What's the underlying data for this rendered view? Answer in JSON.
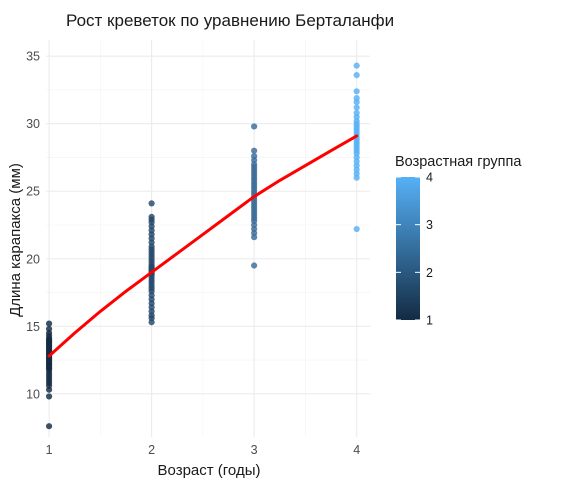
{
  "chart_data": {
    "type": "scatter",
    "title": "Рост креветок по уравнению Берталанфи",
    "xlabel": "Возраст (годы)",
    "ylabel": "Длина карапакса (мм)",
    "xlim": [
      0.97,
      4.13
    ],
    "ylim": [
      6.8,
      36.2
    ],
    "x_ticks": [
      1,
      2,
      3,
      4
    ],
    "y_ticks": [
      10,
      15,
      20,
      25,
      30,
      35
    ],
    "grid": true,
    "legend": {
      "title": "Возрастная группа",
      "type": "color-gradient",
      "placement": "right",
      "range": [
        1,
        4
      ],
      "ticks": [
        1,
        2,
        3,
        4
      ],
      "color_low": "#132b43",
      "color_high": "#56b1f7"
    },
    "series": [
      {
        "kind": "points",
        "groups": [
          {
            "x": 1,
            "color": "#132b43",
            "y": [
              15.2,
              14.8,
              14.5,
              14.3,
              14.1,
              14.0,
              13.9,
              13.8,
              13.7,
              13.6,
              13.5,
              13.4,
              13.3,
              13.2,
              13.1,
              13.0,
              12.9,
              12.8,
              12.7,
              12.6,
              12.5,
              12.4,
              12.3,
              12.2,
              12.1,
              12.0,
              11.9,
              11.8,
              11.6,
              11.4,
              11.2,
              11.0,
              10.8,
              10.6,
              10.3,
              9.8,
              7.6
            ]
          },
          {
            "x": 2,
            "color": "#25486a",
            "y": [
              24.1,
              23.1,
              22.9,
              22.7,
              22.4,
              22.1,
              21.8,
              21.5,
              21.2,
              20.9,
              20.7,
              20.5,
              20.3,
              20.1,
              19.9,
              19.7,
              19.5,
              19.4,
              19.3,
              19.2,
              19.1,
              19.0,
              18.9,
              18.8,
              18.6,
              18.4,
              18.2,
              18.0,
              17.8,
              17.6,
              17.3,
              17.0,
              16.7,
              16.4,
              16.1,
              15.8,
              15.6,
              15.3
            ]
          },
          {
            "x": 3,
            "color": "#3a6b97",
            "y": [
              29.8,
              28.0,
              27.6,
              27.3,
              27.0,
              26.8,
              26.6,
              26.4,
              26.2,
              26.0,
              25.8,
              25.6,
              25.4,
              25.2,
              25.0,
              24.8,
              24.6,
              24.4,
              24.2,
              24.0,
              23.8,
              23.6,
              23.4,
              23.2,
              23.0,
              22.8,
              22.5,
              22.2,
              21.9,
              21.6,
              19.5
            ]
          },
          {
            "x": 4,
            "color": "#56b1f7",
            "y": [
              34.3,
              33.6,
              32.4,
              31.9,
              31.6,
              31.2,
              30.8,
              30.5,
              30.2,
              30.0,
              29.8,
              29.6,
              29.4,
              29.2,
              29.0,
              28.8,
              28.6,
              28.4,
              28.2,
              28.0,
              27.8,
              27.5,
              27.2,
              26.9,
              26.6,
              26.3,
              26.0,
              22.2
            ]
          }
        ]
      },
      {
        "kind": "line",
        "color": "#ff0000",
        "x": [
          1.0,
          1.25,
          1.5,
          1.75,
          2.0,
          2.25,
          2.5,
          2.75,
          3.0,
          3.25,
          3.5,
          3.75,
          4.0
        ],
        "y": [
          12.8,
          14.5,
          16.1,
          17.6,
          19.0,
          20.4,
          21.8,
          23.2,
          24.6,
          25.8,
          26.9,
          28.0,
          29.1
        ]
      }
    ]
  }
}
